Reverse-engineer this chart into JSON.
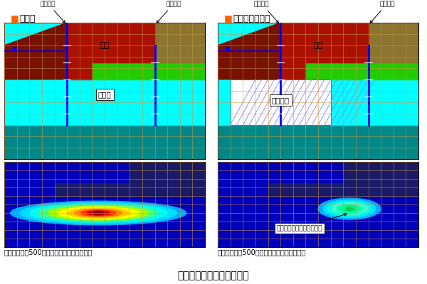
{
  "title": "護岸拡張工事の圧密解析例",
  "title_fontsize": 10,
  "left_panel_title": "無対策",
  "right_panel_title": "対策－地盤改良",
  "left_labels": {
    "new_shore": "新設護岸",
    "exist_shore": "既設護岸",
    "embankment": "盛土",
    "soft_layer": "軟弱層"
  },
  "right_labels": {
    "new_shore": "新設護岸",
    "exist_shore": "既設護岸",
    "embankment": "盛土",
    "improvement": "地盤改良"
  },
  "bottom_left_caption": "盛土完了から500日後の過剰間隙水圧分布図",
  "bottom_right_caption": "盛土完了から500日後の過剰間隙水圧分布図",
  "bottom_right_annotation": "過剰間隙水圧の消散を促進",
  "bg_color": "#ffffff",
  "cyan_color": "#00ffff",
  "teal_color": "#008888",
  "red_fill": "#aa1100",
  "green_fill": "#22cc00",
  "brown_fill": "#8B7530",
  "dark_blue_bg": "#0000bb",
  "grid_color_warm": "#cc9944",
  "grid_color_blue": "#4477cc",
  "orange_marker": "#ff6600"
}
